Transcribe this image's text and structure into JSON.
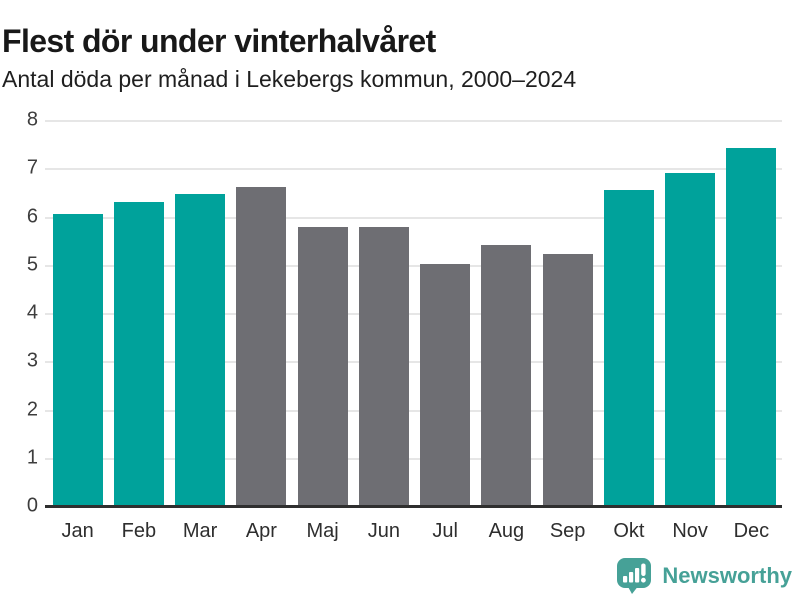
{
  "header": {
    "title": "Flest dör under vinterhalvåret",
    "subtitle": "Antal döda per månad i Lekebergs kommun, 2000–2024"
  },
  "chart_data": {
    "type": "bar",
    "title": "Flest dör under vinterhalvåret",
    "subtitle": "Antal döda per månad i Lekebergs kommun, 2000–2024",
    "categories": [
      "Jan",
      "Feb",
      "Mar",
      "Apr",
      "Maj",
      "Jun",
      "Jul",
      "Aug",
      "Sep",
      "Okt",
      "Nov",
      "Dec"
    ],
    "values": [
      6.08,
      6.32,
      6.48,
      6.64,
      5.8,
      5.8,
      5.04,
      5.44,
      5.24,
      6.56,
      6.92,
      7.44
    ],
    "bar_colors": [
      "teal",
      "teal",
      "teal",
      "gray",
      "gray",
      "gray",
      "gray",
      "gray",
      "gray",
      "teal",
      "teal",
      "teal"
    ],
    "xlabel": "",
    "ylabel": "",
    "ylim": [
      0,
      8
    ],
    "yticks": [
      0,
      1,
      2,
      3,
      4,
      5,
      6,
      7,
      8
    ],
    "grid": true,
    "legend": false
  },
  "colors": {
    "winter_bar": "#00a29b",
    "summer_bar": "#6e6e73",
    "gridline": "#e6e6e6",
    "axis_line": "#2f2f2f",
    "tick_text": "#3d3d3d",
    "title_text": "#181818",
    "subtitle_text": "#1f1f1f",
    "logo": "#46a197"
  },
  "branding": {
    "logo_text": "Newsworthy",
    "logo_icon": "speech-bubble-bar-chart-icon"
  }
}
